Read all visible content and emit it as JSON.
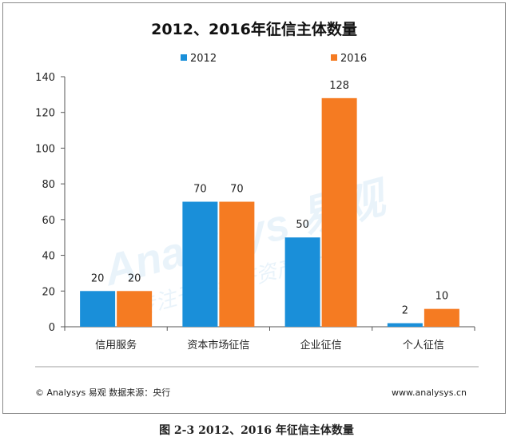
{
  "chart_data": {
    "type": "bar",
    "title": "2012、2016年征信主体数量",
    "categories": [
      "信用服务",
      "资本市场征信",
      "企业征信",
      "个人征信"
    ],
    "series": [
      {
        "name": "2012",
        "values": [
          20,
          70,
          50,
          2
        ],
        "color": "#1a8fd9"
      },
      {
        "name": "2016",
        "values": [
          20,
          70,
          128,
          10
        ],
        "color": "#f57b22"
      }
    ],
    "ylim": [
      0,
      140
    ],
    "yticks": [
      0,
      20,
      40,
      60,
      80,
      100,
      120,
      140
    ],
    "grid": false,
    "legend_position": "top-center"
  },
  "watermark": {
    "brand": "Analysys 易观",
    "slogan": "专注于新经济资产成长"
  },
  "footer": {
    "source": "© Analysys 易观   数据来源：央行",
    "website": "www.analysys.cn",
    "caption": "图 2-3 2012、2016 年征信主体数量"
  }
}
